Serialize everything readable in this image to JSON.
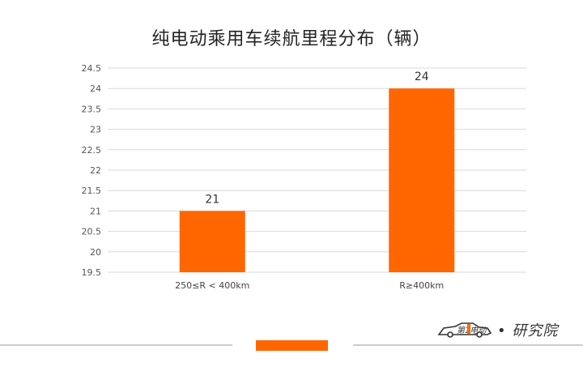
{
  "chart_data": {
    "type": "bar",
    "title": "纯电动乘用车续航里程分布（辆）",
    "categories": [
      "250≤R < 400km",
      "R≥400km"
    ],
    "values": [
      21,
      24
    ],
    "ylim": [
      19.5,
      24.5
    ],
    "yticks": [
      "24.5",
      "24",
      "23.5",
      "23",
      "22.5",
      "22",
      "21.5",
      "21",
      "20.5",
      "20",
      "19.5"
    ],
    "grid": true,
    "bar_color": "#ff6600"
  },
  "brand": {
    "logo_text": "第1电动",
    "text": "• 研究院"
  },
  "colors": {
    "accent": "#ff6600",
    "grid": "#d9d9d9",
    "footer_line": "#cccccc"
  }
}
